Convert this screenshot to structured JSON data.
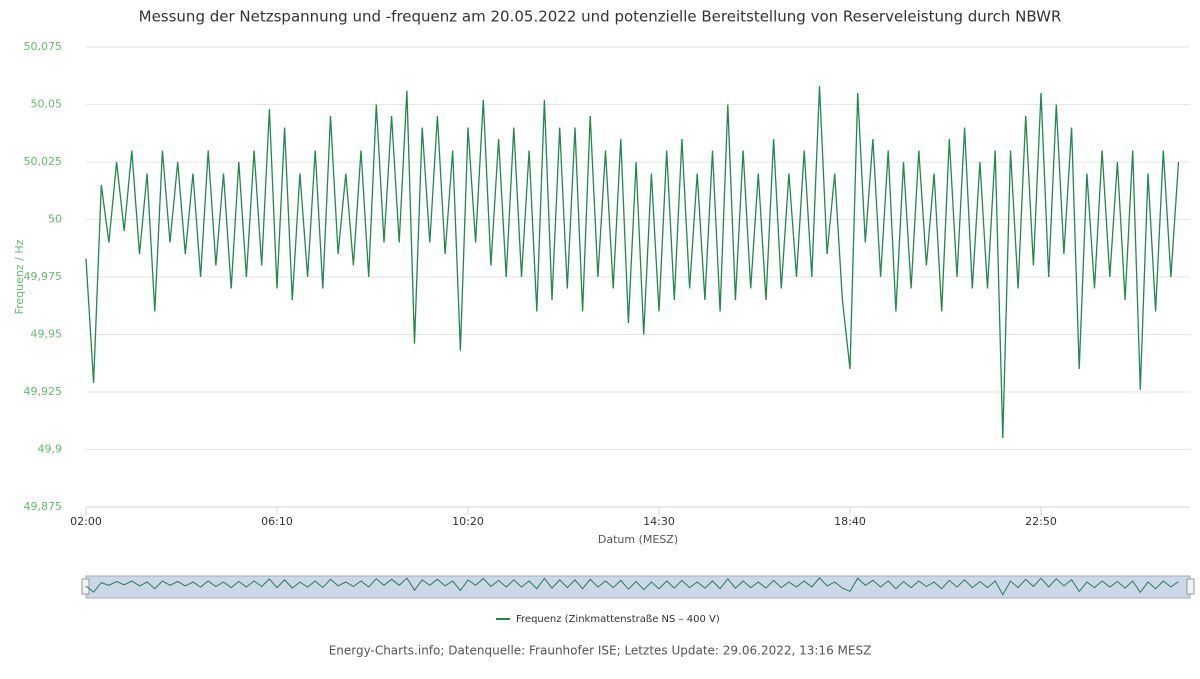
{
  "chart_data": {
    "type": "line",
    "title": "Messung der Netzspannung und -frequenz am 20.05.2022 und potenzielle Bereitstellung von Reserveleistung durch NBWR",
    "x_label": "Datum (MESZ)",
    "y_label": "Frequenz / Hz",
    "source": "Energy-Charts.info; Datenquelle: Fraunhofer ISE; Letztes Update: 29.06.2022, 13:16 MESZ",
    "categories": [
      "02:00",
      "02:10",
      "02:20",
      "02:30",
      "02:40",
      "02:50",
      "03:00",
      "03:10",
      "03:20",
      "03:30",
      "03:40",
      "03:50",
      "04:00",
      "04:10",
      "04:20",
      "04:30",
      "04:40",
      "04:50",
      "05:00",
      "05:10",
      "05:20",
      "05:30",
      "05:40",
      "05:50",
      "06:00",
      "06:10",
      "06:20",
      "06:30",
      "06:40",
      "06:50",
      "07:00",
      "07:10",
      "07:20",
      "07:30",
      "07:40",
      "07:50",
      "08:00",
      "08:10",
      "08:20",
      "08:30",
      "08:40",
      "08:50",
      "09:00",
      "09:10",
      "09:20",
      "09:30",
      "09:40",
      "09:50",
      "10:00",
      "10:10",
      "10:20",
      "10:30",
      "10:40",
      "10:50",
      "11:00",
      "11:10",
      "11:20",
      "11:30",
      "11:40",
      "11:50",
      "12:00",
      "12:10",
      "12:20",
      "12:30",
      "12:40",
      "12:50",
      "13:00",
      "13:10",
      "13:20",
      "13:30",
      "13:40",
      "13:50",
      "14:00",
      "14:10",
      "14:20",
      "14:30",
      "14:40",
      "14:50",
      "15:00",
      "15:10",
      "15:20",
      "15:30",
      "15:40",
      "15:50",
      "16:00",
      "16:10",
      "16:20",
      "16:30",
      "16:40",
      "16:50",
      "17:00",
      "17:10",
      "17:20",
      "17:30",
      "17:40",
      "17:50",
      "18:00",
      "18:10",
      "18:20",
      "18:30",
      "18:40",
      "18:50",
      "19:00",
      "19:10",
      "19:20",
      "19:30",
      "19:40",
      "19:50",
      "20:00",
      "20:10",
      "20:20",
      "20:30",
      "20:40",
      "20:50",
      "21:00",
      "21:10",
      "21:20",
      "21:30",
      "21:40",
      "21:50",
      "22:00",
      "22:10",
      "22:20",
      "22:30",
      "22:40",
      "22:50",
      "23:00",
      "23:10",
      "23:20",
      "23:30",
      "23:40",
      "23:50",
      "00:00",
      "00:10",
      "00:20",
      "00:30",
      "00:40",
      "00:50",
      "01:00",
      "01:10",
      "01:20",
      "01:30",
      "01:40",
      "01:50"
    ],
    "series": [
      {
        "name": "Frequenz (Zinkmattenstraße NS – 400 V)",
        "color": "#1f8a4c",
        "values": [
          49.983,
          49.929,
          50.015,
          49.99,
          50.025,
          49.995,
          50.03,
          49.985,
          50.02,
          49.96,
          50.03,
          49.99,
          50.025,
          49.985,
          50.02,
          49.975,
          50.03,
          49.98,
          50.02,
          49.97,
          50.025,
          49.975,
          50.03,
          49.98,
          50.048,
          49.97,
          50.04,
          49.965,
          50.02,
          49.975,
          50.03,
          49.97,
          50.045,
          49.985,
          50.02,
          49.98,
          50.03,
          49.975,
          50.05,
          49.99,
          50.045,
          49.99,
          50.056,
          49.946,
          50.04,
          49.99,
          50.045,
          49.985,
          50.03,
          49.943,
          50.04,
          49.99,
          50.052,
          49.98,
          50.035,
          49.975,
          50.04,
          49.975,
          50.03,
          49.96,
          50.052,
          49.965,
          50.04,
          49.97,
          50.04,
          49.96,
          50.045,
          49.975,
          50.03,
          49.97,
          50.035,
          49.955,
          50.025,
          49.95,
          50.02,
          49.96,
          50.03,
          49.965,
          50.035,
          49.97,
          50.02,
          49.965,
          50.03,
          49.96,
          50.05,
          49.965,
          50.03,
          49.97,
          50.02,
          49.965,
          50.035,
          49.97,
          50.02,
          49.975,
          50.03,
          49.975,
          50.058,
          49.985,
          50.02,
          49.965,
          49.935,
          50.055,
          49.99,
          50.035,
          49.975,
          50.03,
          49.96,
          50.025,
          49.97,
          50.03,
          49.98,
          50.02,
          49.96,
          50.035,
          49.975,
          50.04,
          49.97,
          50.025,
          49.97,
          50.03,
          49.905,
          50.03,
          49.97,
          50.045,
          49.98,
          50.055,
          49.975,
          50.05,
          49.985,
          50.04,
          49.935,
          50.02,
          49.97,
          50.03,
          49.975,
          50.025,
          49.965,
          50.03,
          49.926,
          50.02,
          49.96,
          50.03,
          49.975,
          50.025
        ]
      }
    ],
    "xticks": [
      "02:00",
      "06:10",
      "10:20",
      "14:30",
      "18:40",
      "22:50"
    ],
    "ylim": [
      49.875,
      50.075
    ],
    "yticks": [
      {
        "value": 49.875,
        "label": "49,875"
      },
      {
        "value": 49.9,
        "label": "49,9"
      },
      {
        "value": 49.925,
        "label": "49,925"
      },
      {
        "value": 49.95,
        "label": "49,95"
      },
      {
        "value": 49.975,
        "label": "49,975"
      },
      50,
      {
        "value": 50.025,
        "label": "50,025"
      },
      {
        "value": 50.05,
        "label": "50,05"
      },
      {
        "value": 50.075,
        "label": "50,075"
      }
    ],
    "grid": true
  }
}
